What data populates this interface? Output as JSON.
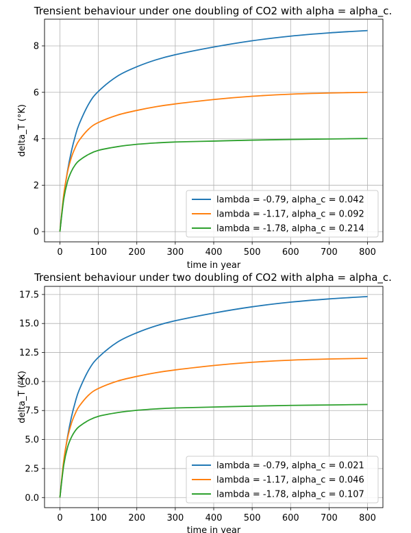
{
  "chart_data": [
    {
      "type": "line",
      "title": "Trensient behaviour under one doubling of CO2 with alpha = alpha_c.",
      "xlabel": "time in year",
      "ylabel": "delta_T (°K)",
      "xlim": [
        -40,
        840
      ],
      "ylim": [
        -0.44,
        9.15
      ],
      "xticks": [
        0,
        100,
        200,
        300,
        400,
        500,
        600,
        700,
        800
      ],
      "yticks": [
        0,
        2,
        4,
        6,
        8
      ],
      "ytick_labels": [
        "0",
        "2",
        "4",
        "6",
        "8"
      ],
      "grid": true,
      "legend_position": "lower-right",
      "x": [
        0,
        10,
        20,
        30,
        40,
        50,
        75,
        100,
        150,
        200,
        250,
        300,
        400,
        500,
        600,
        700,
        800
      ],
      "series": [
        {
          "name": "lambda = -0.79, alpha_c = 0.042",
          "color": "#1f77b4",
          "values": [
            0,
            1.52,
            2.63,
            3.47,
            4.12,
            4.63,
            5.5,
            6.04,
            6.7,
            7.1,
            7.4,
            7.62,
            7.95,
            8.22,
            8.42,
            8.56,
            8.66
          ]
        },
        {
          "name": "lambda = -1.17, alpha_c = 0.092",
          "color": "#ff7f0e",
          "values": [
            0,
            1.6,
            2.58,
            3.2,
            3.62,
            3.93,
            4.42,
            4.7,
            5.02,
            5.22,
            5.38,
            5.5,
            5.69,
            5.83,
            5.92,
            5.97,
            6.0
          ]
        },
        {
          "name": "lambda = -1.78, alpha_c = 0.214",
          "color": "#2ca02c",
          "values": [
            0,
            1.4,
            2.17,
            2.6,
            2.88,
            3.06,
            3.33,
            3.5,
            3.66,
            3.76,
            3.82,
            3.86,
            3.9,
            3.94,
            3.97,
            3.99,
            4.01
          ]
        }
      ]
    },
    {
      "type": "line",
      "title": "Trensient behaviour under two doubling of CO2 with alpha = alpha_c.",
      "xlabel": "time in year",
      "ylabel": "delta_T (°K)",
      "xlim": [
        -40,
        840
      ],
      "ylim": [
        -0.87,
        18.2
      ],
      "xticks": [
        0,
        100,
        200,
        300,
        400,
        500,
        600,
        700,
        800
      ],
      "yticks": [
        0,
        2.5,
        5,
        7.5,
        10,
        12.5,
        15,
        17.5
      ],
      "ytick_labels": [
        "0.0",
        "2.5",
        "5.0",
        "7.5",
        "10.0",
        "12.5",
        "15.0",
        "17.5"
      ],
      "grid": true,
      "legend_position": "lower-right",
      "x": [
        0,
        10,
        20,
        30,
        40,
        50,
        75,
        100,
        150,
        200,
        250,
        300,
        400,
        500,
        600,
        700,
        800
      ],
      "series": [
        {
          "name": "lambda = -0.79, alpha_c = 0.021",
          "color": "#1f77b4",
          "values": [
            0,
            3.04,
            5.26,
            6.94,
            8.24,
            9.26,
            11.0,
            12.08,
            13.4,
            14.2,
            14.8,
            15.24,
            15.9,
            16.44,
            16.84,
            17.12,
            17.32
          ]
        },
        {
          "name": "lambda = -1.17, alpha_c = 0.046",
          "color": "#ff7f0e",
          "values": [
            0,
            3.2,
            5.16,
            6.4,
            7.24,
            7.86,
            8.84,
            9.4,
            10.04,
            10.44,
            10.76,
            11.0,
            11.38,
            11.66,
            11.84,
            11.94,
            12.0
          ]
        },
        {
          "name": "lambda = -1.78, alpha_c = 0.107",
          "color": "#2ca02c",
          "values": [
            0,
            2.8,
            4.34,
            5.2,
            5.76,
            6.12,
            6.66,
            7.0,
            7.32,
            7.52,
            7.64,
            7.72,
            7.8,
            7.88,
            7.94,
            7.98,
            8.02
          ]
        }
      ]
    }
  ]
}
